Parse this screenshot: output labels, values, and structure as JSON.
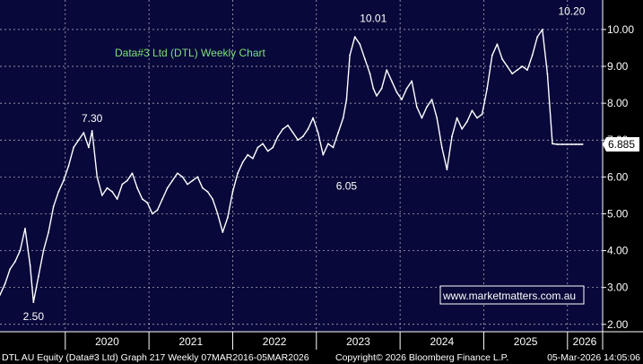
{
  "chart_data": {
    "type": "line",
    "title": "Data#3 Ltd (DTL) Weekly Chart",
    "ylim": [
      1.8,
      10.8
    ],
    "yticks": [
      "2.00",
      "3.00",
      "4.00",
      "5.00",
      "6.00",
      "7.00",
      "8.00",
      "9.00",
      "10.00"
    ],
    "xlim": [
      2019.22,
      2026.42
    ],
    "xticks": [
      "2020",
      "2021",
      "2022",
      "2023",
      "2024",
      "2025",
      "2026"
    ],
    "grid": true,
    "last_value": "6.885",
    "colors": {
      "background": "#08083a",
      "line": "#ffffff",
      "grid": "#ffffff",
      "title": "#7ee07a"
    },
    "annotations": [
      {
        "label": "7.30",
        "x": 2020.32,
        "y": 7.3
      },
      {
        "label": "2.50",
        "x": 2019.62,
        "y": 2.5
      },
      {
        "label": "10.01",
        "x": 2023.68,
        "y": 10.01
      },
      {
        "label": "6.05",
        "x": 2023.36,
        "y": 6.05
      },
      {
        "label": "10.20",
        "x": 2026.05,
        "y": 10.2
      }
    ],
    "series": [
      {
        "x": [
          2019.22,
          2019.28,
          2019.34,
          2019.4,
          2019.46,
          2019.52,
          2019.58,
          2019.62,
          2019.68,
          2019.74,
          2019.8,
          2019.86,
          2019.92,
          2019.98,
          2020.04,
          2020.1,
          2020.16,
          2020.22,
          2020.28,
          2020.32,
          2020.38,
          2020.44,
          2020.5,
          2020.56,
          2020.62,
          2020.68,
          2020.74,
          2020.8,
          2020.86,
          2020.92,
          2020.98,
          2021.04,
          2021.1,
          2021.16,
          2021.22,
          2021.28,
          2021.34,
          2021.4,
          2021.46,
          2021.52,
          2021.58,
          2021.64,
          2021.7,
          2021.76,
          2021.82,
          2021.88,
          2021.94,
          2022.0,
          2022.06,
          2022.12,
          2022.18,
          2022.24,
          2022.3,
          2022.36,
          2022.42,
          2022.48,
          2022.54,
          2022.6,
          2022.66,
          2022.72,
          2022.78,
          2022.84,
          2022.9,
          2022.96,
          2023.02,
          2023.08,
          2023.14,
          2023.2,
          2023.26,
          2023.32,
          2023.36,
          2023.4,
          2023.46,
          2023.52,
          2023.58,
          2023.64,
          2023.68,
          2023.72,
          2023.78,
          2023.84,
          2023.9,
          2023.96,
          2024.02,
          2024.08,
          2024.14,
          2024.2,
          2024.26,
          2024.32,
          2024.38,
          2024.44,
          2024.5,
          2024.56,
          2024.62,
          2024.68,
          2024.74,
          2024.8,
          2024.86,
          2024.92,
          2024.98,
          2025.04,
          2025.1,
          2025.16,
          2025.22,
          2025.28,
          2025.34,
          2025.4,
          2025.46,
          2025.52,
          2025.58,
          2025.64,
          2025.7,
          2025.76,
          2025.82,
          2025.88,
          2025.94,
          2026.0,
          2026.05,
          2026.1,
          2026.14,
          2026.18
        ],
        "y": [
          2.8,
          3.1,
          3.5,
          3.7,
          4.0,
          4.6,
          3.6,
          2.6,
          3.3,
          4.0,
          4.5,
          5.2,
          5.6,
          5.9,
          6.3,
          6.8,
          7.0,
          7.2,
          6.8,
          7.25,
          6.0,
          5.5,
          5.7,
          5.6,
          5.4,
          5.8,
          5.9,
          6.1,
          5.7,
          5.4,
          5.3,
          5.0,
          5.1,
          5.4,
          5.7,
          5.9,
          6.1,
          6.0,
          5.8,
          5.9,
          6.0,
          5.7,
          5.6,
          5.4,
          5.0,
          4.5,
          4.9,
          5.6,
          6.1,
          6.4,
          6.6,
          6.5,
          6.8,
          6.9,
          6.7,
          6.8,
          7.1,
          7.3,
          7.4,
          7.2,
          7.0,
          7.1,
          7.3,
          7.6,
          7.2,
          6.6,
          6.9,
          6.8,
          7.2,
          7.6,
          8.1,
          9.3,
          9.8,
          9.6,
          9.2,
          8.8,
          8.4,
          8.2,
          8.4,
          8.9,
          8.6,
          8.3,
          8.1,
          8.4,
          8.6,
          7.9,
          7.6,
          7.9,
          8.1,
          7.6,
          6.8,
          6.2,
          7.1,
          7.6,
          7.3,
          7.5,
          7.8,
          7.6,
          7.7,
          8.4,
          9.3,
          9.6,
          9.2,
          9.0,
          8.8,
          8.9,
          9.0,
          8.9,
          9.3,
          9.8,
          10.0,
          8.8,
          6.9,
          6.885,
          6.885,
          6.885,
          6.885,
          6.885,
          6.885,
          6.885
        ]
      }
    ]
  },
  "footer": {
    "left": "DTL AU Equity (Data#3 Ltd) Graph 217 Weekly 07MAR2016-05MAR2026",
    "copyright": "Copyright© 2026 Bloomberg Finance L.P.",
    "timestamp": "05-Mar-2026 14:05:06"
  },
  "watermark": "www.marketmatters.com.au"
}
